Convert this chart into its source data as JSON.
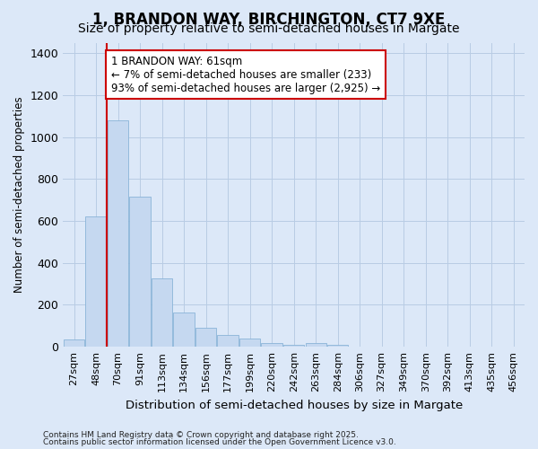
{
  "title": "1, BRANDON WAY, BIRCHINGTON, CT7 9XE",
  "subtitle": "Size of property relative to semi-detached houses in Margate",
  "xlabel": "Distribution of semi-detached houses by size in Margate",
  "ylabel": "Number of semi-detached properties",
  "categories": [
    "27sqm",
    "48sqm",
    "70sqm",
    "91sqm",
    "113sqm",
    "134sqm",
    "156sqm",
    "177sqm",
    "199sqm",
    "220sqm",
    "242sqm",
    "263sqm",
    "284sqm",
    "306sqm",
    "327sqm",
    "349sqm",
    "370sqm",
    "392sqm",
    "413sqm",
    "435sqm",
    "456sqm"
  ],
  "values": [
    35,
    620,
    1080,
    715,
    325,
    165,
    90,
    58,
    38,
    18,
    8,
    18,
    8,
    0,
    0,
    0,
    0,
    0,
    0,
    0,
    0
  ],
  "bar_color": "#c5d8f0",
  "bar_edge_color": "#8ab4d8",
  "vline_pos": 1.5,
  "vline_color": "#cc0000",
  "annotation_text": "1 BRANDON WAY: 61sqm\n← 7% of semi-detached houses are smaller (233)\n93% of semi-detached houses are larger (2,925) →",
  "annotation_box_color": "#ffffff",
  "annotation_box_edge": "#cc0000",
  "footnote1": "Contains HM Land Registry data © Crown copyright and database right 2025.",
  "footnote2": "Contains public sector information licensed under the Open Government Licence v3.0.",
  "ylim": [
    0,
    1450
  ],
  "background_color": "#dce8f8",
  "plot_background": "#dce8f8",
  "grid_color": "#b8cce4",
  "title_fontsize": 12,
  "subtitle_fontsize": 10
}
